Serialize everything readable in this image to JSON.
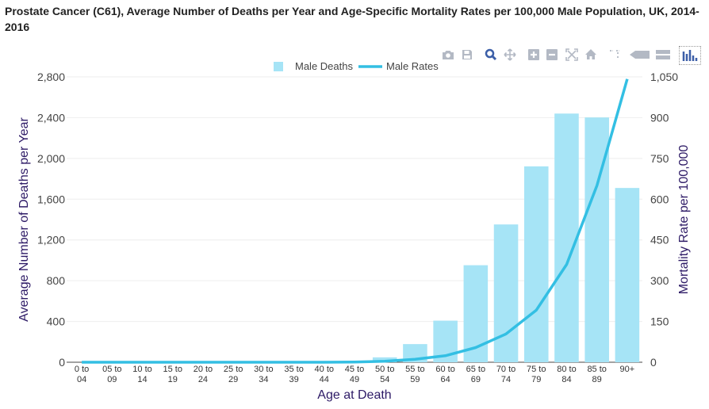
{
  "title": "Prostate Cancer (C61), Average Number of Deaths per Year and Age-Specific Mortality Rates per 100,000 Male Population, UK, 2014-2016",
  "colors": {
    "bar": "#a6e4f6",
    "line": "#33bfe3",
    "axis_title": "#2d1a66",
    "text": "#444444",
    "grid": "#eeeeee",
    "icon": "#b3b9c4",
    "icon_active": "#3c5fa8"
  },
  "toolbar": {
    "icons": [
      "camera-icon",
      "save-icon",
      "zoom-icon",
      "pan-icon",
      "zoom-in-icon",
      "zoom-out-icon",
      "autoscale-icon",
      "home-icon",
      "spike-lines-icon",
      "hover-closest-icon",
      "hover-compare-icon",
      "plotly-logo-icon"
    ]
  },
  "chart_data": {
    "type": "bar+line",
    "title": "Prostate Cancer (C61), Average Number of Deaths per Year and Age-Specific Mortality Rates per 100,000 Male Population, UK, 2014-2016",
    "xlabel": "Age at Death",
    "ylabel": "Average Number of Deaths per Year",
    "y2label": "Mortality Rate per 100,000",
    "ylim": [
      0,
      2800
    ],
    "y2lim": [
      0,
      1050
    ],
    "yticks": [
      "0",
      "400",
      "800",
      "1,200",
      "1,600",
      "2,000",
      "2,400",
      "2,800"
    ],
    "y2ticks": [
      "0",
      "150",
      "300",
      "450",
      "600",
      "750",
      "900",
      "1,050"
    ],
    "categories": [
      [
        "0 to",
        "04"
      ],
      [
        "05 to",
        "09"
      ],
      [
        "10 to",
        "14"
      ],
      [
        "15 to",
        "19"
      ],
      [
        "20 to",
        "24"
      ],
      [
        "25 to",
        "29"
      ],
      [
        "30 to",
        "34"
      ],
      [
        "35 to",
        "39"
      ],
      [
        "40 to",
        "44"
      ],
      [
        "45 to",
        "49"
      ],
      [
        "50 to",
        "54"
      ],
      [
        "55 to",
        "59"
      ],
      [
        "60 to",
        "64"
      ],
      [
        "65 to",
        "69"
      ],
      [
        "70 to",
        "74"
      ],
      [
        "75 to",
        "79"
      ],
      [
        "80 to",
        "84"
      ],
      [
        "85 to",
        "89"
      ],
      [
        "90+",
        ""
      ]
    ],
    "legend_position": "top-center",
    "series": [
      {
        "name": "Male Deaths",
        "kind": "bar",
        "axis": "left",
        "values": [
          0,
          0,
          0,
          0,
          0,
          0,
          0,
          0,
          2,
          9,
          48,
          178,
          408,
          952,
          1352,
          1922,
          2440,
          2402,
          1710
        ]
      },
      {
        "name": "Male Rates",
        "kind": "line",
        "axis": "right",
        "values": [
          0,
          0,
          0,
          0,
          0,
          0,
          0,
          0,
          0.1,
          0.6,
          3.5,
          11,
          24,
          54,
          104,
          192,
          360,
          650,
          1042
        ]
      }
    ]
  }
}
